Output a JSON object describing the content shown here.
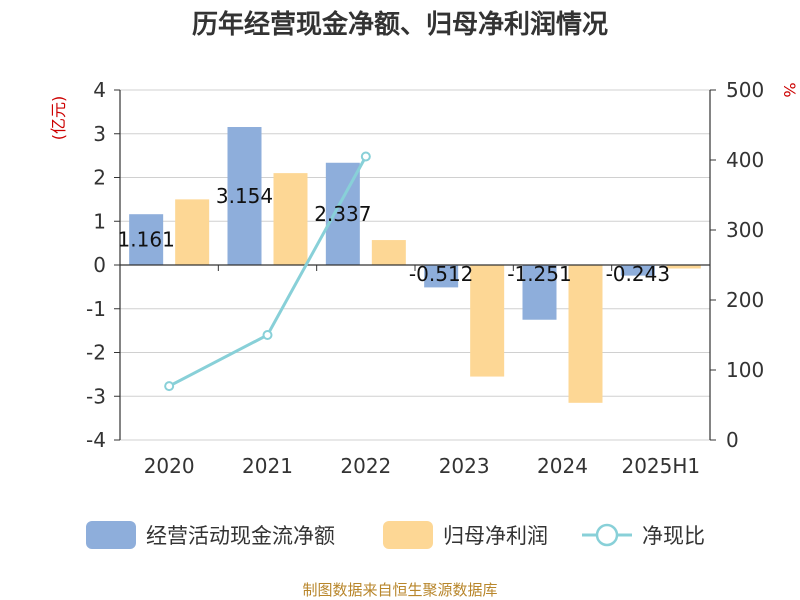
{
  "chart_data": {
    "type": "bar",
    "title": "历年经营现金净额、归母净利润情况",
    "categories": [
      "2020",
      "2021",
      "2022",
      "2023",
      "2024",
      "2025H1"
    ],
    "series": [
      {
        "name": "经营活动现金流净额",
        "kind": "bar",
        "axis": "left",
        "color": "#8eaedb",
        "values": [
          1.161,
          3.154,
          2.337,
          -0.512,
          -1.251,
          -0.243
        ],
        "labels": [
          "1.161",
          "3.154",
          "2.337",
          "-0.512",
          "-1.251",
          "-0.243"
        ]
      },
      {
        "name": "归母净利润",
        "kind": "bar",
        "axis": "left",
        "color": "#fdd795",
        "values": [
          1.5,
          2.1,
          0.57,
          -2.55,
          -3.15,
          -0.08
        ]
      },
      {
        "name": "净现比",
        "kind": "line",
        "axis": "right",
        "color": "#88d0d8",
        "values": [
          77,
          150,
          405,
          null,
          null,
          null
        ]
      }
    ],
    "ylabel_left": "(亿元)",
    "ylabel_right": "%",
    "ylim_left": [
      -4,
      4
    ],
    "ylim_right": [
      0,
      500
    ],
    "yticks_left": [
      "4",
      "3",
      "2",
      "1",
      "0",
      "-1",
      "-2",
      "-3",
      "-4"
    ],
    "yticks_right": [
      "500",
      "400",
      "300",
      "200",
      "100",
      "0"
    ],
    "grid": true,
    "legend_position": "bottom"
  },
  "source_text": "制图数据来自恒生聚源数据库"
}
